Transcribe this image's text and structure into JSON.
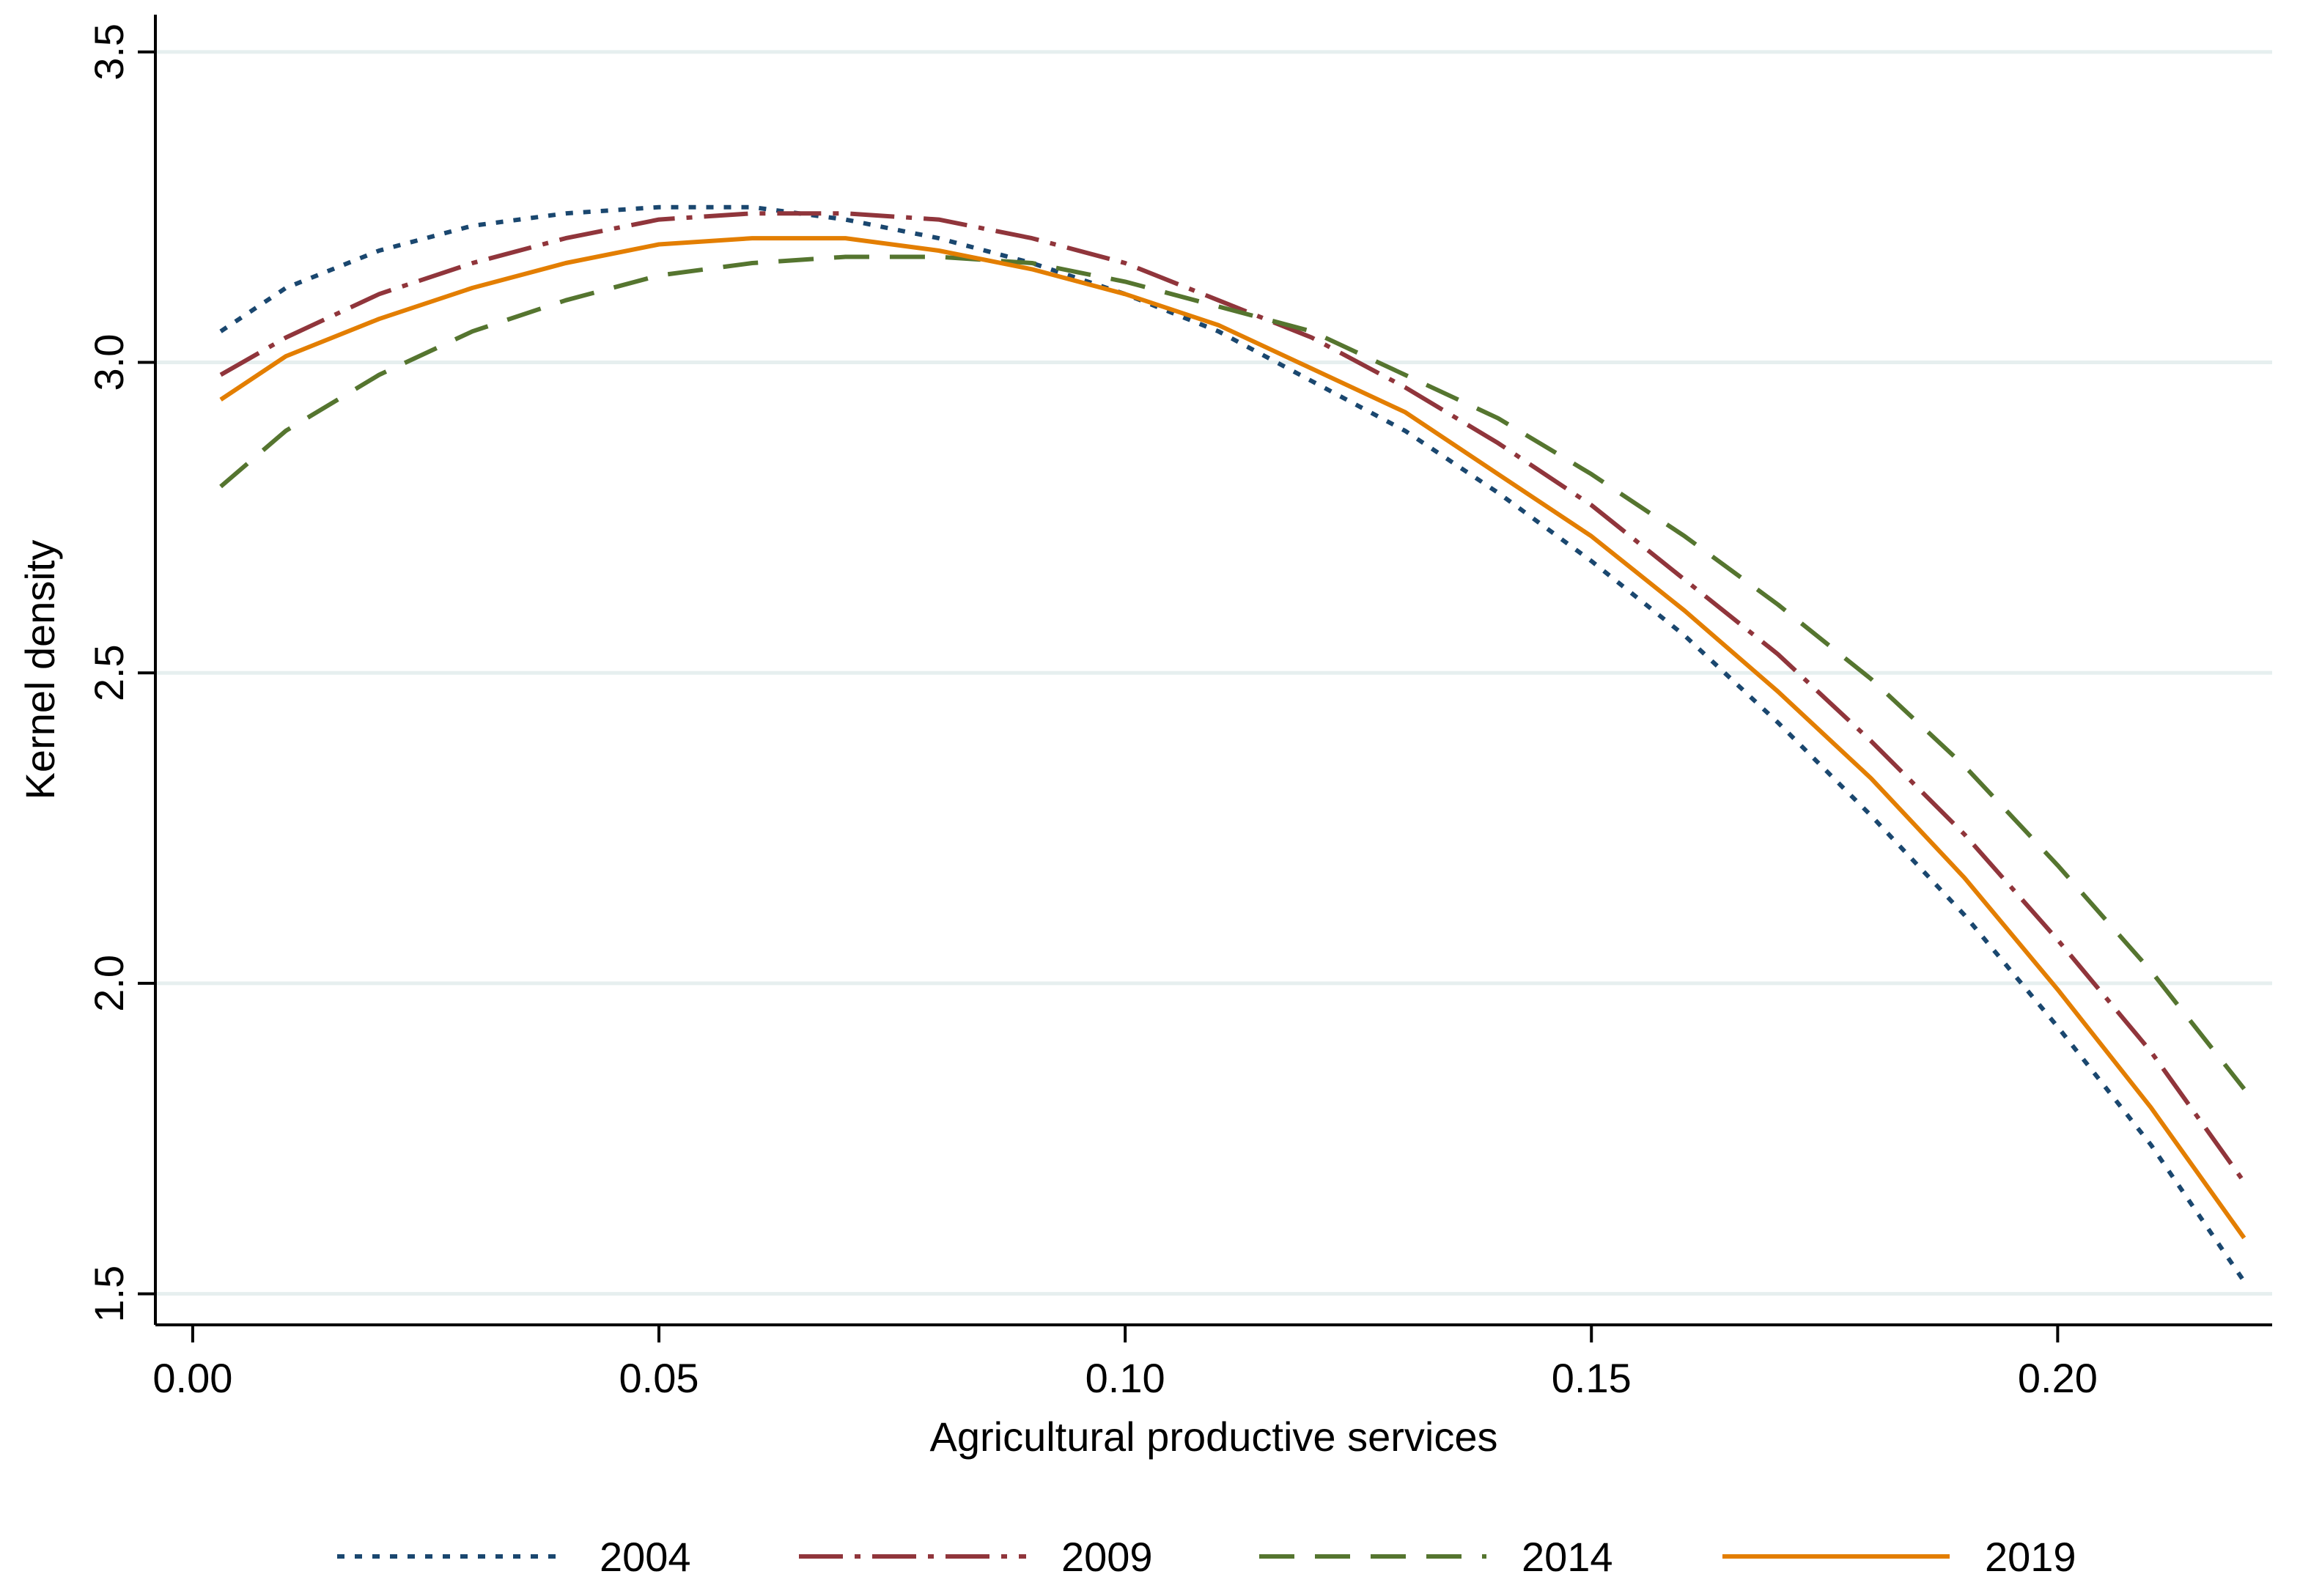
{
  "chart_data": {
    "type": "line",
    "title": "",
    "xlabel": "Agricultural productive services",
    "ylabel": "Kernel density",
    "xlim": [
      -0.004,
      0.223
    ],
    "ylim": [
      1.45,
      3.56
    ],
    "xticks": [
      0.0,
      0.05,
      0.1,
      0.15,
      0.2
    ],
    "xtick_labels": [
      "0.00",
      "0.05",
      "0.10",
      "0.15",
      "0.20"
    ],
    "yticks": [
      1.5,
      2.0,
      2.5,
      3.0,
      3.5
    ],
    "ytick_labels": [
      "1.5",
      "2.0",
      "2.5",
      "3.0",
      "3.5"
    ],
    "grid": "horizontal",
    "legend": {
      "placement": "bottom",
      "columns": 4
    },
    "series": [
      {
        "name": "2004",
        "color": "#1a476f",
        "dash": "dotted",
        "x": [
          0.003,
          0.01,
          0.02,
          0.03,
          0.04,
          0.05,
          0.06,
          0.07,
          0.08,
          0.09,
          0.1,
          0.11,
          0.12,
          0.13,
          0.14,
          0.15,
          0.16,
          0.17,
          0.18,
          0.19,
          0.2,
          0.21,
          0.22
        ],
        "y": [
          3.05,
          3.12,
          3.18,
          3.22,
          3.24,
          3.25,
          3.25,
          3.23,
          3.2,
          3.16,
          3.11,
          3.05,
          2.97,
          2.89,
          2.79,
          2.68,
          2.56,
          2.42,
          2.27,
          2.11,
          1.93,
          1.74,
          1.52
        ]
      },
      {
        "name": "2009",
        "color": "#90353b",
        "dash": "dash-dot",
        "x": [
          0.003,
          0.01,
          0.02,
          0.03,
          0.04,
          0.05,
          0.06,
          0.07,
          0.08,
          0.09,
          0.1,
          0.11,
          0.12,
          0.13,
          0.14,
          0.15,
          0.16,
          0.17,
          0.18,
          0.19,
          0.2,
          0.21,
          0.22
        ],
        "y": [
          2.98,
          3.04,
          3.11,
          3.16,
          3.2,
          3.23,
          3.24,
          3.24,
          3.23,
          3.2,
          3.16,
          3.1,
          3.04,
          2.96,
          2.87,
          2.77,
          2.65,
          2.53,
          2.39,
          2.24,
          2.07,
          1.89,
          1.68
        ]
      },
      {
        "name": "2014",
        "color": "#55752f",
        "dash": "dashed",
        "x": [
          0.003,
          0.01,
          0.02,
          0.03,
          0.04,
          0.05,
          0.06,
          0.07,
          0.08,
          0.09,
          0.1,
          0.11,
          0.12,
          0.13,
          0.14,
          0.15,
          0.16,
          0.17,
          0.18,
          0.19,
          0.2,
          0.21,
          0.22
        ],
        "y": [
          2.8,
          2.89,
          2.98,
          3.05,
          3.1,
          3.14,
          3.16,
          3.17,
          3.17,
          3.16,
          3.13,
          3.09,
          3.05,
          2.98,
          2.91,
          2.82,
          2.72,
          2.61,
          2.49,
          2.35,
          2.19,
          2.02,
          1.83
        ]
      },
      {
        "name": "2019",
        "color": "#e37e00",
        "dash": "solid",
        "x": [
          0.003,
          0.01,
          0.02,
          0.03,
          0.04,
          0.05,
          0.06,
          0.07,
          0.08,
          0.09,
          0.1,
          0.11,
          0.12,
          0.13,
          0.14,
          0.15,
          0.16,
          0.17,
          0.18,
          0.19,
          0.2,
          0.21,
          0.22
        ],
        "y": [
          2.94,
          3.01,
          3.07,
          3.12,
          3.16,
          3.19,
          3.2,
          3.2,
          3.18,
          3.15,
          3.11,
          3.06,
          2.99,
          2.92,
          2.82,
          2.72,
          2.6,
          2.47,
          2.33,
          2.17,
          1.99,
          1.8,
          1.59
        ]
      }
    ]
  }
}
